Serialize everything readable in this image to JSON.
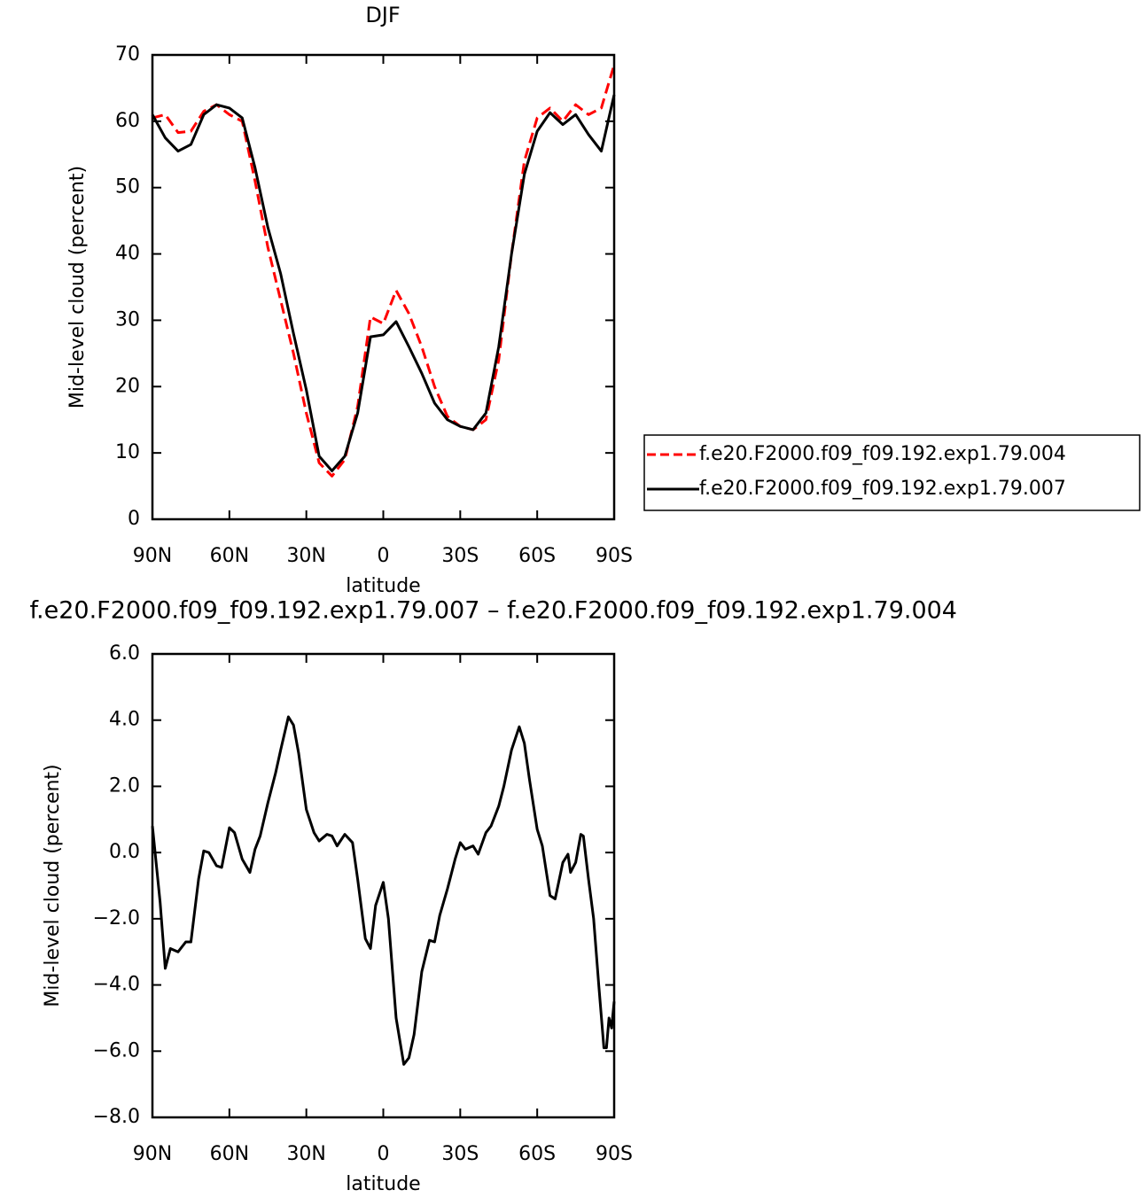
{
  "chart_data": [
    {
      "type": "line",
      "title": "DJF",
      "xlabel": "latitude",
      "ylabel": "Mid-level cloud (percent)",
      "x": [
        90,
        85,
        80,
        75,
        70,
        65,
        60,
        55,
        50,
        45,
        40,
        35,
        30,
        25,
        20,
        15,
        10,
        5,
        0,
        -5,
        -10,
        -15,
        -20,
        -25,
        -30,
        -35,
        -40,
        -45,
        -50,
        -55,
        -60,
        -65,
        -70,
        -75,
        -80,
        -85,
        -90
      ],
      "series": [
        {
          "name": "f.e20.F2000.f09_f09.192.exp1.79.004",
          "color": "#ff0000",
          "dash": "dashed",
          "values": [
            60.5,
            61,
            58.3,
            58.5,
            61.5,
            62.5,
            61,
            60,
            51,
            41,
            33,
            25,
            16,
            8.5,
            6.5,
            9,
            17,
            30.5,
            29.5,
            34.5,
            31,
            26,
            20,
            15.5,
            14,
            13.5,
            15,
            24,
            40,
            54,
            60.5,
            62,
            60,
            62.5,
            61,
            62,
            68.5
          ]
        },
        {
          "name": "f.e20.F2000.f09_f09.192.exp1.79.007",
          "color": "#000000",
          "dash": "solid",
          "values": [
            61,
            57.5,
            55.5,
            56.5,
            61,
            62.5,
            62,
            60.5,
            53,
            44,
            37,
            28,
            19.5,
            9.5,
            7.3,
            9.5,
            16,
            27.5,
            27.8,
            29.8,
            26,
            22,
            17.5,
            15,
            14,
            13.5,
            16,
            26,
            40,
            52,
            58.5,
            61.3,
            59.5,
            61,
            58,
            55.5,
            64
          ]
        }
      ],
      "xlim": [
        90,
        -90
      ],
      "xticks": [
        {
          "value": 90,
          "label": "90N"
        },
        {
          "value": 60,
          "label": "60N"
        },
        {
          "value": 30,
          "label": "30N"
        },
        0,
        {
          "value": -30,
          "label": "30S"
        },
        {
          "value": -60,
          "label": "60S"
        },
        {
          "value": -90,
          "label": "90S"
        }
      ],
      "ylim": [
        0,
        70
      ],
      "yticks": [
        0,
        10,
        20,
        30,
        40,
        50,
        60,
        70
      ],
      "legend": "right"
    },
    {
      "type": "line",
      "title": "f.e20.F2000.f09_f09.192.exp1.79.007 – f.e20.F2000.f09_f09.192.exp1.79.004",
      "xlabel": "latitude",
      "ylabel": "Mid-level cloud (percent)",
      "x": [
        90,
        87,
        85,
        83,
        80,
        77,
        75,
        72,
        70,
        68,
        65,
        63,
        60,
        58,
        55,
        52,
        50,
        48,
        45,
        42,
        40,
        37,
        35,
        33,
        30,
        27,
        25,
        22,
        20,
        18,
        15,
        12,
        10,
        7,
        5,
        3,
        0,
        -2,
        -5,
        -8,
        -10,
        -12,
        -15,
        -18,
        -20,
        -22,
        -25,
        -28,
        -30,
        -32,
        -35,
        -37,
        -40,
        -42,
        -45,
        -47,
        -50,
        -53,
        -55,
        -57,
        -60,
        -62,
        -65,
        -67,
        -70,
        -72,
        -73,
        -75,
        -77,
        -78,
        -80,
        -82,
        -84,
        -86,
        -87,
        -88,
        -89,
        -90
      ],
      "series": [
        {
          "color": "#000000",
          "dash": "solid",
          "values": [
            0.8,
            -1.5,
            -3.5,
            -2.9,
            -3.0,
            -2.7,
            -2.7,
            -0.8,
            0.05,
            0,
            -0.4,
            -0.45,
            0.75,
            0.6,
            -0.2,
            -0.6,
            0.1,
            0.5,
            1.5,
            2.4,
            3.1,
            4.1,
            3.85,
            3.0,
            1.3,
            0.6,
            0.35,
            0.55,
            0.5,
            0.2,
            0.55,
            0.3,
            -0.8,
            -2.6,
            -2.9,
            -1.6,
            -0.9,
            -2.0,
            -5.0,
            -6.4,
            -6.2,
            -5.5,
            -3.6,
            -2.65,
            -2.7,
            -1.9,
            -1.1,
            -0.2,
            0.3,
            0.1,
            0.2,
            -0.05,
            0.6,
            0.8,
            1.4,
            2.0,
            3.1,
            3.8,
            3.3,
            2.2,
            0.7,
            0.2,
            -1.3,
            -1.4,
            -0.3,
            -0.05,
            -0.6,
            -0.3,
            0.55,
            0.5,
            -0.8,
            -2.0,
            -4.0,
            -5.9,
            -5.9,
            -5.0,
            -5.3,
            -4.5
          ]
        }
      ],
      "xlim": [
        90,
        -90
      ],
      "xticks": [
        {
          "value": 90,
          "label": "90N"
        },
        {
          "value": 60,
          "label": "60N"
        },
        {
          "value": 30,
          "label": "30N"
        },
        0,
        {
          "value": -30,
          "label": "30S"
        },
        {
          "value": -60,
          "label": "60S"
        },
        {
          "value": -90,
          "label": "90S"
        }
      ],
      "ylim": [
        -8,
        6
      ],
      "yticks": [
        {
          "value": -8,
          "label": "−8.0"
        },
        {
          "value": -6,
          "label": "−6.0"
        },
        {
          "value": -4,
          "label": "−4.0"
        },
        {
          "value": -2,
          "label": "−2.0"
        },
        {
          "value": 0,
          "label": "0.0"
        },
        {
          "value": 2,
          "label": "2.0"
        },
        {
          "value": 4,
          "label": "4.0"
        },
        {
          "value": 6,
          "label": "6.0"
        }
      ]
    }
  ]
}
